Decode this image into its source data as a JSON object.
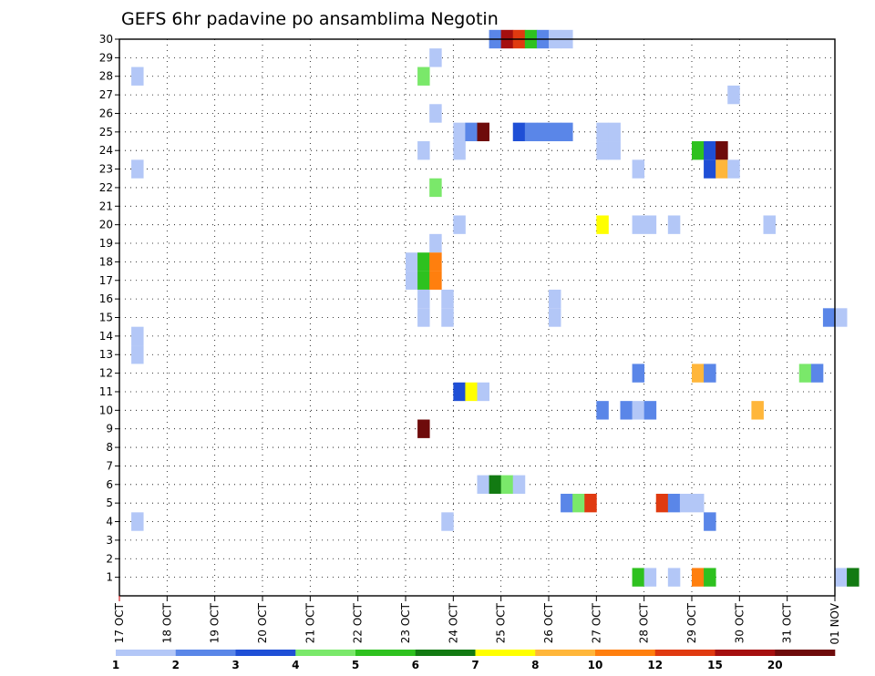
{
  "chart_data": {
    "type": "heatmap",
    "title": "GEFS 6hr padavine po ansamblima Negotin",
    "y_ticks": [
      1,
      2,
      3,
      4,
      5,
      6,
      7,
      8,
      9,
      10,
      11,
      12,
      13,
      14,
      15,
      16,
      17,
      18,
      19,
      20,
      21,
      22,
      23,
      24,
      25,
      26,
      27,
      28,
      29,
      30
    ],
    "ylim": [
      0,
      30
    ],
    "x_ticks": [
      "17 OCT",
      "18 OCT",
      "19 OCT",
      "20 OCT",
      "21 OCT",
      "22 OCT",
      "23 OCT",
      "24 OCT",
      "25 OCT",
      "26 OCT",
      "27 OCT",
      "28 OCT",
      "29 OCT",
      "30 OCT",
      "31 OCT",
      "01 NOV"
    ],
    "xlim_days": [
      0,
      15
    ],
    "grid": true,
    "colorbar": {
      "labels": [
        "1",
        "2",
        "3",
        "4",
        "5",
        "6",
        "7",
        "8",
        "10",
        "12",
        "15",
        "20"
      ],
      "colors": [
        "#b3c7f7",
        "#5a86e8",
        "#1f4fd6",
        "#7ae86a",
        "#2ec11f",
        "#127a12",
        "#ffff00",
        "#ffb63a",
        "#ff7f0e",
        "#e03a10",
        "#a50f0f",
        "#6e0b0b"
      ]
    },
    "cells_note": "each cell: [day_offset_from_17OCT, member, color_index]",
    "cells": [
      [
        7.75,
        30,
        1
      ],
      [
        8.0,
        30,
        10
      ],
      [
        8.25,
        30,
        9
      ],
      [
        8.5,
        30,
        4
      ],
      [
        8.75,
        30,
        1
      ],
      [
        9.0,
        30,
        0
      ],
      [
        9.25,
        30,
        0
      ],
      [
        6.5,
        29,
        0
      ],
      [
        0.25,
        28,
        0
      ],
      [
        6.25,
        28,
        3
      ],
      [
        12.75,
        27,
        0
      ],
      [
        6.5,
        26,
        0
      ],
      [
        7.0,
        25,
        0
      ],
      [
        7.25,
        25,
        1
      ],
      [
        7.5,
        25,
        11
      ],
      [
        8.25,
        25,
        2
      ],
      [
        8.5,
        25,
        1
      ],
      [
        8.75,
        25,
        1
      ],
      [
        9.0,
        25,
        1
      ],
      [
        9.25,
        25,
        1
      ],
      [
        10.0,
        25,
        0
      ],
      [
        10.25,
        25,
        0
      ],
      [
        6.25,
        24,
        0
      ],
      [
        7.0,
        24,
        0
      ],
      [
        10.0,
        24,
        0
      ],
      [
        10.25,
        24,
        0
      ],
      [
        12.0,
        24,
        4
      ],
      [
        12.25,
        24,
        2
      ],
      [
        12.5,
        24,
        11
      ],
      [
        0.25,
        23,
        0
      ],
      [
        10.75,
        23,
        0
      ],
      [
        12.25,
        23,
        2
      ],
      [
        12.5,
        23,
        7
      ],
      [
        12.75,
        23,
        0
      ],
      [
        6.5,
        22,
        3
      ],
      [
        7.0,
        20,
        0
      ],
      [
        10.0,
        20,
        6
      ],
      [
        10.75,
        20,
        0
      ],
      [
        11.0,
        20,
        0
      ],
      [
        11.5,
        20,
        0
      ],
      [
        13.5,
        20,
        0
      ],
      [
        6.5,
        19,
        0
      ],
      [
        6.0,
        18,
        0
      ],
      [
        6.25,
        18,
        4
      ],
      [
        6.5,
        18,
        8
      ],
      [
        6.0,
        17,
        0
      ],
      [
        6.25,
        17,
        4
      ],
      [
        6.5,
        17,
        8
      ],
      [
        6.25,
        16,
        0
      ],
      [
        6.75,
        16,
        0
      ],
      [
        9.0,
        16,
        0
      ],
      [
        6.25,
        15,
        0
      ],
      [
        6.75,
        15,
        0
      ],
      [
        9.0,
        15,
        0
      ],
      [
        14.75,
        15,
        1
      ],
      [
        15.0,
        15,
        0
      ],
      [
        0.25,
        14,
        0
      ],
      [
        0.25,
        13,
        0
      ],
      [
        10.75,
        12,
        1
      ],
      [
        12.0,
        12,
        7
      ],
      [
        12.25,
        12,
        1
      ],
      [
        14.25,
        12,
        3
      ],
      [
        14.5,
        12,
        1
      ],
      [
        7.0,
        11,
        2
      ],
      [
        7.25,
        11,
        6
      ],
      [
        7.5,
        11,
        0
      ],
      [
        10.0,
        10,
        1
      ],
      [
        10.5,
        10,
        1
      ],
      [
        10.75,
        10,
        0
      ],
      [
        11.0,
        10,
        1
      ],
      [
        13.25,
        10,
        7
      ],
      [
        6.25,
        9,
        11
      ],
      [
        7.5,
        6,
        0
      ],
      [
        7.75,
        6,
        5
      ],
      [
        8.0,
        6,
        3
      ],
      [
        8.25,
        6,
        0
      ],
      [
        9.25,
        5,
        1
      ],
      [
        9.5,
        5,
        3
      ],
      [
        9.75,
        5,
        9
      ],
      [
        11.25,
        5,
        9
      ],
      [
        11.5,
        5,
        1
      ],
      [
        11.75,
        5,
        0
      ],
      [
        12.0,
        5,
        0
      ],
      [
        0.25,
        4,
        0
      ],
      [
        6.75,
        4,
        0
      ],
      [
        12.25,
        4,
        1
      ],
      [
        10.75,
        1,
        4
      ],
      [
        11.0,
        1,
        0
      ],
      [
        11.5,
        1,
        0
      ],
      [
        12.0,
        1,
        8
      ],
      [
        12.25,
        1,
        4
      ],
      [
        15.0,
        1,
        0
      ],
      [
        15.25,
        1,
        5
      ]
    ]
  }
}
